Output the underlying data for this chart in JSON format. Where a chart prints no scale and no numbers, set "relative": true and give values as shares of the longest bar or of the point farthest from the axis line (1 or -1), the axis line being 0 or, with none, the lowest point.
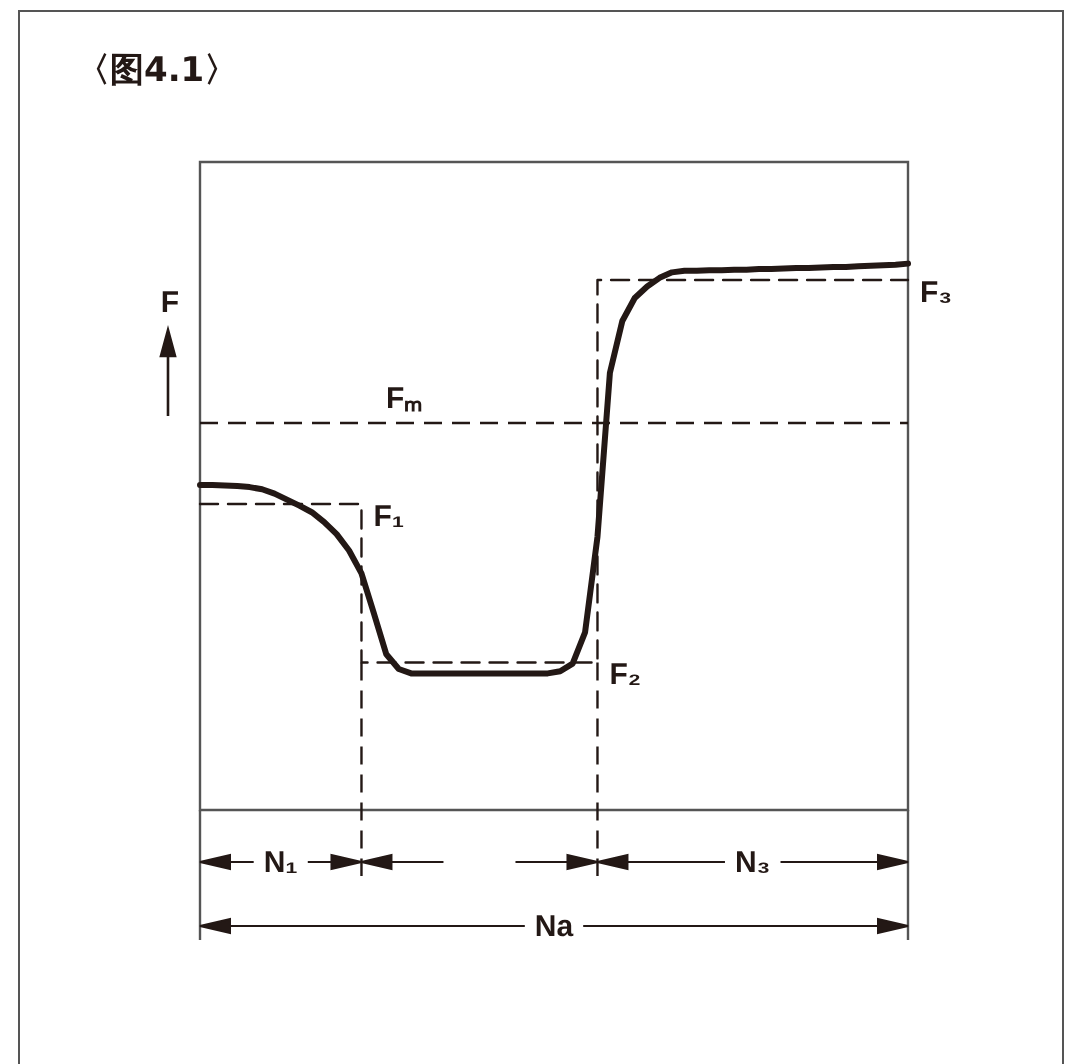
{
  "chart_data": {
    "type": "line",
    "title": "〈图4.1〉",
    "ylabel": "F",
    "relative": true,
    "marker": "none",
    "categories": [
      null,
      null,
      null,
      null,
      null,
      null,
      null,
      null,
      null,
      null,
      null,
      null,
      null,
      null,
      null,
      null,
      null,
      null,
      null,
      null,
      null,
      null,
      null,
      null,
      null,
      null,
      null,
      null,
      null,
      null,
      null,
      null,
      null,
      null,
      null,
      null,
      null,
      null,
      null,
      null,
      null,
      null,
      null,
      null,
      null,
      null,
      null,
      null,
      null,
      null,
      null,
      null,
      null,
      null,
      null,
      null,
      null,
      null
    ],
    "series": [
      {
        "color": "#231815",
        "values": [
          0.595,
          0.595,
          0.594,
          0.593,
          0.591,
          0.587,
          0.579,
          0.568,
          0.557,
          0.545,
          0.527,
          0.505,
          0.475,
          0.433,
          0.36,
          0.285,
          0.258,
          0.25,
          0.25,
          0.25,
          0.25,
          0.25,
          0.25,
          0.25,
          0.25,
          0.25,
          0.25,
          0.25,
          0.25,
          0.254,
          0.268,
          0.325,
          0.5,
          0.8,
          0.895,
          0.937,
          0.958,
          0.974,
          0.984,
          0.987,
          0.987,
          0.988,
          0.988,
          0.989,
          0.989,
          0.99,
          0.99,
          0.991,
          0.992,
          0.992,
          0.993,
          0.994,
          0.994,
          0.995,
          0.996,
          0.997,
          0.998,
          1
        ]
      },
      {
        "type": "step",
        "color": "#231815",
        "line_style": "dashed",
        "values": [
          0.56,
          0.56,
          0.56,
          0.56,
          0.56,
          0.56,
          0.56,
          0.56,
          0.56,
          0.56,
          0.56,
          0.56,
          0.56,
          0.56,
          0.27,
          0.27,
          0.27,
          0.27,
          0.27,
          0.27,
          0.27,
          0.27,
          0.27,
          0.27,
          0.27,
          0.27,
          0.27,
          0.27,
          0.27,
          0.27,
          0.27,
          0.27,
          0.27,
          0.97,
          0.97,
          0.97,
          0.97,
          0.97,
          0.97,
          0.97,
          0.97,
          0.97,
          0.97,
          0.97,
          0.97,
          0.97,
          0.97,
          0.97,
          0.97,
          0.97,
          0.97,
          0.97,
          0.97,
          0.97,
          0.97,
          0.97,
          0.97,
          0.97
        ]
      }
    ],
    "ref_lines": [
      {
        "axis": "y",
        "value": 0.71,
        "label": "Fₘ",
        "color": "#231815",
        "line_style": "dashed"
      }
    ],
    "annotations": [
      "F₁",
      "F₂",
      "F₃",
      "N₁",
      "N₃",
      "Na"
    ]
  }
}
